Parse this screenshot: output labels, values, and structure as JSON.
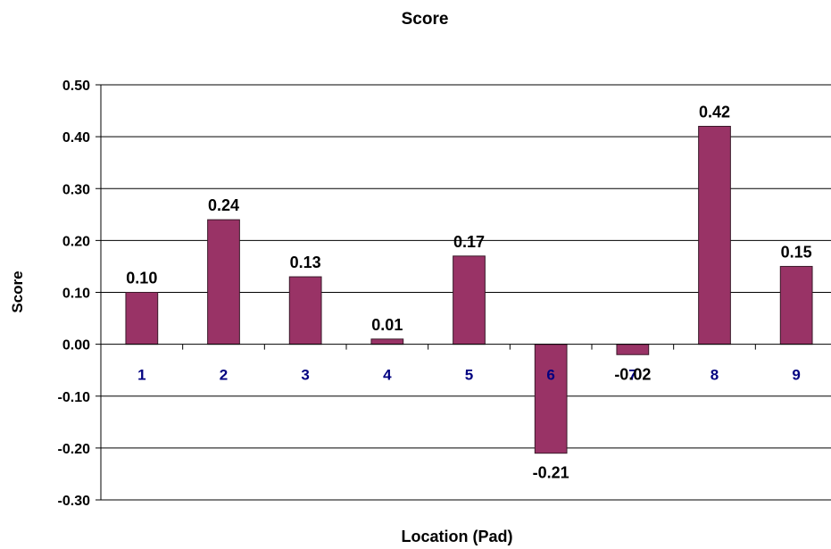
{
  "colors": {
    "bar_fill": "#993366",
    "bar_stroke": "#3a1a2a",
    "category_label": "#000080",
    "gridline": "#000000",
    "text": "#000000"
  },
  "chart_data": {
    "type": "bar",
    "title": "Score",
    "xlabel": "Location (Pad)",
    "ylabel": "Score",
    "categories": [
      "1",
      "2",
      "3",
      "4",
      "5",
      "6",
      "7",
      "8",
      "9"
    ],
    "values": [
      0.1,
      0.24,
      0.13,
      0.01,
      0.17,
      -0.21,
      -0.02,
      0.42,
      0.15
    ],
    "data_labels": [
      "0.10",
      "0.24",
      "0.13",
      "0.01",
      "0.17",
      "-0.21",
      "-0.02",
      "0.42",
      "0.15"
    ],
    "ylim": [
      -0.3,
      0.5
    ],
    "yticks": [
      0.5,
      0.4,
      0.3,
      0.2,
      0.1,
      0.0,
      -0.1,
      -0.2,
      -0.3
    ],
    "ytick_labels": [
      "0.50",
      "0.40",
      "0.30",
      "0.20",
      "0.10",
      "0.00",
      "-0.10",
      "-0.20",
      "-0.30"
    ],
    "grid": true,
    "legend": "none"
  }
}
